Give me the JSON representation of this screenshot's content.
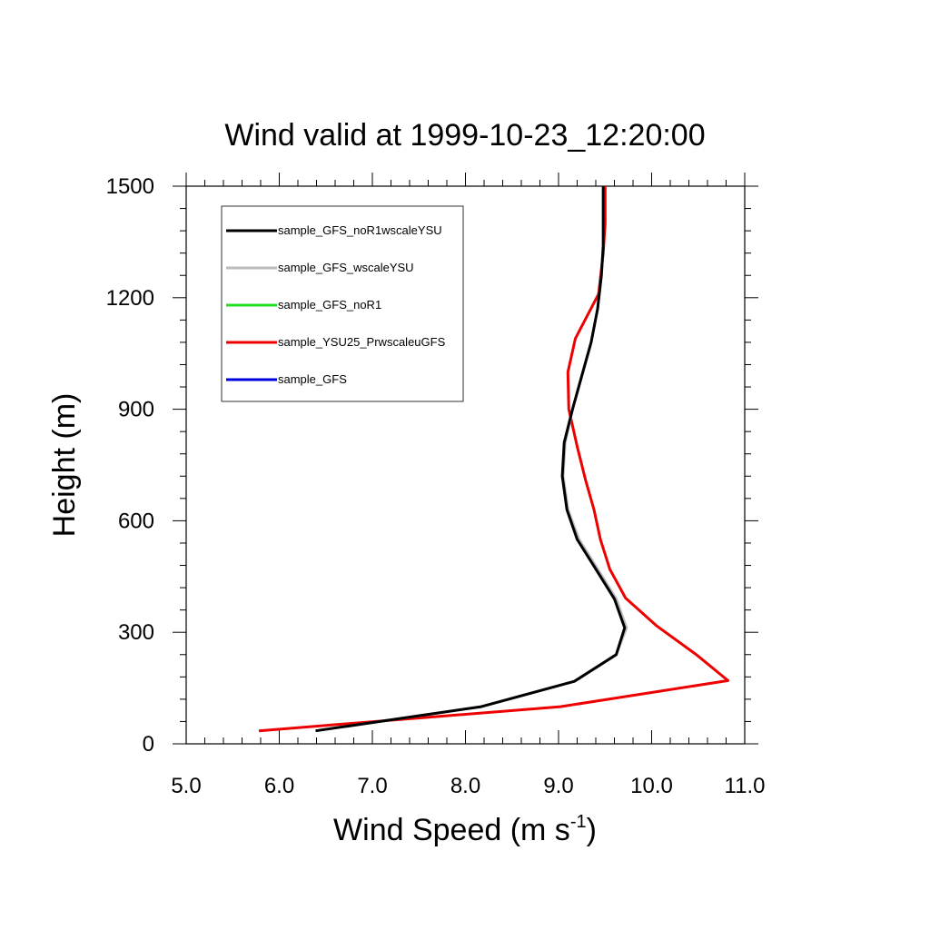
{
  "chart_data": {
    "type": "line",
    "title": "Wind valid at 1999-10-23_12:20:00",
    "xlabel": "Wind Speed (m s",
    "xlabel_sup": "-1",
    "xlabel_close": ")",
    "ylabel": "Height (m)",
    "xlim": [
      5.0,
      11.0
    ],
    "ylim": [
      0,
      1500
    ],
    "xticks": [
      5.0,
      6.0,
      7.0,
      8.0,
      9.0,
      10.0,
      11.0
    ],
    "xtick_labels": [
      "5.0",
      "6.0",
      "7.0",
      "8.0",
      "9.0",
      "10.0",
      "11.0"
    ],
    "yticks": [
      0,
      300,
      600,
      900,
      1200,
      1500
    ],
    "ytick_labels": [
      "0",
      "300",
      "600",
      "900",
      "1200",
      "1500"
    ],
    "grid": false,
    "legend_position": "top-left",
    "series": [
      {
        "name": "sample_GFS_noR1wscaleYSU",
        "color": "#000000",
        "points": [
          [
            6.39,
            35
          ],
          [
            8.17,
            100
          ],
          [
            9.17,
            168
          ],
          [
            9.62,
            240
          ],
          [
            9.71,
            312
          ],
          [
            9.6,
            390
          ],
          [
            9.4,
            470
          ],
          [
            9.2,
            550
          ],
          [
            9.09,
            630
          ],
          [
            9.04,
            720
          ],
          [
            9.06,
            810
          ],
          [
            9.15,
            900
          ],
          [
            9.25,
            990
          ],
          [
            9.35,
            1080
          ],
          [
            9.42,
            1170
          ],
          [
            9.46,
            1260
          ],
          [
            9.48,
            1340
          ],
          [
            9.48,
            1400
          ],
          [
            9.48,
            1500
          ]
        ]
      },
      {
        "name": "sample_GFS_wscaleYSU",
        "color": "#bbbbbb",
        "points": [
          [
            6.39,
            35
          ],
          [
            8.17,
            100
          ],
          [
            9.17,
            168
          ],
          [
            9.62,
            240
          ],
          [
            9.73,
            312
          ],
          [
            9.62,
            390
          ],
          [
            9.42,
            470
          ],
          [
            9.22,
            550
          ],
          [
            9.1,
            630
          ],
          [
            9.05,
            720
          ],
          [
            9.07,
            810
          ],
          [
            9.15,
            900
          ],
          [
            9.25,
            990
          ],
          [
            9.35,
            1080
          ],
          [
            9.42,
            1170
          ],
          [
            9.46,
            1260
          ],
          [
            9.48,
            1340
          ],
          [
            9.48,
            1400
          ],
          [
            9.48,
            1500
          ]
        ]
      },
      {
        "name": "sample_GFS_noR1",
        "color": "#22dd22",
        "points": []
      },
      {
        "name": "sample_YSU25_PrwscaleuGFS",
        "color": "#ee0000",
        "points": [
          [
            5.78,
            35
          ],
          [
            9.02,
            100
          ],
          [
            10.82,
            170
          ],
          [
            10.48,
            240
          ],
          [
            10.05,
            318
          ],
          [
            9.72,
            392
          ],
          [
            9.55,
            470
          ],
          [
            9.45,
            550
          ],
          [
            9.38,
            630
          ],
          [
            9.29,
            710
          ],
          [
            9.2,
            800
          ],
          [
            9.11,
            900
          ],
          [
            9.1,
            1000
          ],
          [
            9.18,
            1090
          ],
          [
            9.43,
            1210
          ],
          [
            9.48,
            1320
          ],
          [
            9.5,
            1400
          ],
          [
            9.5,
            1500
          ]
        ]
      },
      {
        "name": "sample_GFS",
        "color": "#0000dd",
        "points": []
      }
    ]
  }
}
